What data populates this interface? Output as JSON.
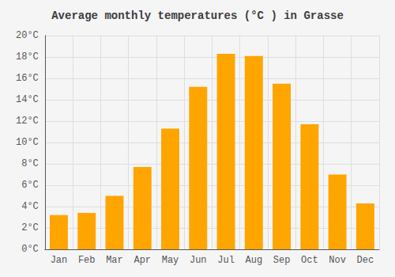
{
  "chart_data": {
    "type": "bar",
    "title": "Average monthly temperatures (°C ) in Grasse",
    "categories": [
      "Jan",
      "Feb",
      "Mar",
      "Apr",
      "May",
      "Jun",
      "Jul",
      "Aug",
      "Sep",
      "Oct",
      "Nov",
      "Dec"
    ],
    "values": [
      3.2,
      3.4,
      5.0,
      7.7,
      11.3,
      15.2,
      18.3,
      18.1,
      15.5,
      11.7,
      7.0,
      4.3
    ],
    "color": "#FFA500",
    "ylim": [
      0,
      20
    ],
    "yticks": [
      {
        "value": 0,
        "label": "0°C"
      },
      {
        "value": 2,
        "label": "2°C"
      },
      {
        "value": 4,
        "label": "4°C"
      },
      {
        "value": 6,
        "label": "6°C"
      },
      {
        "value": 8,
        "label": "8°C"
      },
      {
        "value": 10,
        "label": "10°C"
      },
      {
        "value": 12,
        "label": "12°C"
      },
      {
        "value": 14,
        "label": "14°C"
      },
      {
        "value": 16,
        "label": "16°C"
      },
      {
        "value": 18,
        "label": "18°C"
      },
      {
        "value": 20,
        "label": "20°C"
      }
    ],
    "grid": true
  }
}
